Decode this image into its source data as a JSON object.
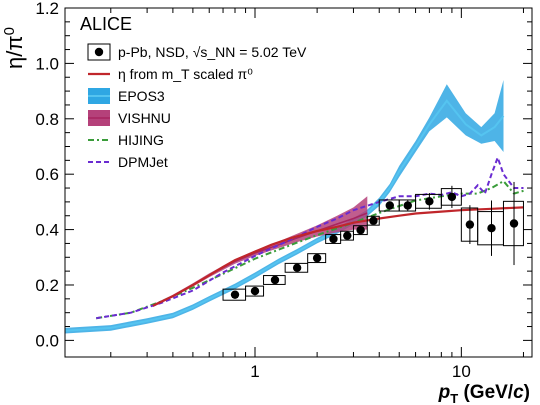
{
  "chart_data": {
    "type": "line",
    "experiment_label": "ALICE",
    "xlabel": "p_T (GeV/c)",
    "ylabel": "η/π⁰",
    "x_scale": "log",
    "xlim": [
      0.12,
      22
    ],
    "ylim": [
      -0.06,
      1.2
    ],
    "x_ticks": [
      {
        "value": 1,
        "label": "1"
      },
      {
        "value": 10,
        "label": "10"
      }
    ],
    "y_ticks": [
      {
        "value": 0.0,
        "label": "0.0"
      },
      {
        "value": 0.2,
        "label": "0.2"
      },
      {
        "value": 0.4,
        "label": "0.4"
      },
      {
        "value": 0.6,
        "label": "0.6"
      },
      {
        "value": 0.8,
        "label": "0.8"
      },
      {
        "value": 1.0,
        "label": "1.0"
      },
      {
        "value": 1.2,
        "label": "1.2"
      }
    ],
    "legend": {
      "placement": "top-left",
      "entries": [
        {
          "key": "data",
          "label": "p-Pb, NSD, √s_NN = 5.02 TeV"
        },
        {
          "key": "scaled",
          "label": "η from m_T scaled π⁰"
        },
        {
          "key": "epos",
          "label": "EPOS3"
        },
        {
          "key": "vishnu",
          "label": "VISHNU"
        },
        {
          "key": "hijing",
          "label": "HIJING"
        },
        {
          "key": "dpmjet",
          "label": "DPMJet"
        }
      ]
    },
    "colors": {
      "data": "#000000",
      "scaled": "#c0262b",
      "epos_line": "#2fa7e3",
      "epos_band": "#2fa7e3",
      "vishnu_line": "#a8245f",
      "vishnu_band": "#b5417a",
      "hijing": "#3a9c3a",
      "dpmjet": "#6a2bd1"
    },
    "data_points": [
      {
        "x": 0.8,
        "y": 0.165,
        "xlo": 0.7,
        "xhi": 0.9,
        "syst": 0.02,
        "stat": 0.015
      },
      {
        "x": 1.0,
        "y": 0.178,
        "xlo": 0.9,
        "xhi": 1.1,
        "syst": 0.018,
        "stat": 0.015
      },
      {
        "x": 1.25,
        "y": 0.218,
        "xlo": 1.1,
        "xhi": 1.4,
        "syst": 0.016,
        "stat": 0.012
      },
      {
        "x": 1.6,
        "y": 0.262,
        "xlo": 1.4,
        "xhi": 1.8,
        "syst": 0.016,
        "stat": 0.012
      },
      {
        "x": 2.0,
        "y": 0.297,
        "xlo": 1.8,
        "xhi": 2.2,
        "syst": 0.016,
        "stat": 0.012
      },
      {
        "x": 2.4,
        "y": 0.366,
        "xlo": 2.2,
        "xhi": 2.6,
        "syst": 0.016,
        "stat": 0.012
      },
      {
        "x": 2.8,
        "y": 0.378,
        "xlo": 2.6,
        "xhi": 3.0,
        "syst": 0.016,
        "stat": 0.012
      },
      {
        "x": 3.25,
        "y": 0.398,
        "xlo": 3.0,
        "xhi": 3.5,
        "syst": 0.016,
        "stat": 0.012
      },
      {
        "x": 3.75,
        "y": 0.432,
        "xlo": 3.5,
        "xhi": 4.0,
        "syst": 0.016,
        "stat": 0.012
      },
      {
        "x": 4.5,
        "y": 0.487,
        "xlo": 4.0,
        "xhi": 5.0,
        "syst": 0.02,
        "stat": 0.015
      },
      {
        "x": 5.5,
        "y": 0.487,
        "xlo": 5.0,
        "xhi": 6.0,
        "syst": 0.02,
        "stat": 0.02
      },
      {
        "x": 7.0,
        "y": 0.502,
        "xlo": 6.0,
        "xhi": 8.0,
        "syst": 0.025,
        "stat": 0.03
      },
      {
        "x": 9.0,
        "y": 0.518,
        "xlo": 8.0,
        "xhi": 10.0,
        "syst": 0.03,
        "stat": 0.04
      },
      {
        "x": 11.0,
        "y": 0.418,
        "xlo": 10.0,
        "xhi": 12.0,
        "syst": 0.06,
        "stat": 0.07
      },
      {
        "x": 14.0,
        "y": 0.405,
        "xlo": 12.0,
        "xhi": 16.0,
        "syst": 0.06,
        "stat": 0.1
      },
      {
        "x": 18.0,
        "y": 0.422,
        "xlo": 16.0,
        "xhi": 20.0,
        "syst": 0.08,
        "stat": 0.15
      }
    ],
    "series": [
      {
        "key": "scaled",
        "style": "solid",
        "points": [
          [
            0.32,
            0.125
          ],
          [
            0.4,
            0.16
          ],
          [
            0.5,
            0.2
          ],
          [
            0.6,
            0.235
          ],
          [
            0.7,
            0.265
          ],
          [
            0.8,
            0.29
          ],
          [
            1.0,
            0.32
          ],
          [
            1.2,
            0.345
          ],
          [
            1.5,
            0.37
          ],
          [
            2.0,
            0.395
          ],
          [
            2.5,
            0.41
          ],
          [
            3.0,
            0.425
          ],
          [
            4.0,
            0.44
          ],
          [
            5.0,
            0.45
          ],
          [
            6.0,
            0.458
          ],
          [
            8.0,
            0.465
          ],
          [
            10.0,
            0.47
          ],
          [
            14.0,
            0.475
          ],
          [
            20.0,
            0.48
          ]
        ]
      },
      {
        "key": "epos",
        "style": "band",
        "points": [
          [
            0.12,
            0.035
          ],
          [
            0.2,
            0.045
          ],
          [
            0.3,
            0.07
          ],
          [
            0.4,
            0.09
          ],
          [
            0.5,
            0.12
          ],
          [
            0.6,
            0.15
          ],
          [
            0.8,
            0.195
          ],
          [
            1.0,
            0.235
          ],
          [
            1.3,
            0.285
          ],
          [
            1.6,
            0.32
          ],
          [
            2.0,
            0.36
          ],
          [
            2.5,
            0.395
          ],
          [
            3.0,
            0.43
          ],
          [
            3.5,
            0.46
          ],
          [
            4.0,
            0.5
          ],
          [
            4.5,
            0.55
          ],
          [
            5.0,
            0.61
          ],
          [
            6.0,
            0.7
          ],
          [
            7.0,
            0.78
          ],
          [
            8.5,
            0.865
          ],
          [
            10.5,
            0.78
          ],
          [
            12.5,
            0.74
          ],
          [
            14.5,
            0.77
          ],
          [
            16.0,
            0.81
          ]
        ],
        "band_halfwidth": [
          0.01,
          0.01,
          0.01,
          0.01,
          0.01,
          0.01,
          0.01,
          0.01,
          0.01,
          0.01,
          0.01,
          0.01,
          0.012,
          0.012,
          0.015,
          0.015,
          0.02,
          0.02,
          0.025,
          0.06,
          0.04,
          0.03,
          0.05,
          0.13
        ]
      },
      {
        "key": "vishnu",
        "style": "band",
        "points": [
          [
            0.32,
            0.125
          ],
          [
            0.4,
            0.16
          ],
          [
            0.5,
            0.2
          ],
          [
            0.6,
            0.235
          ],
          [
            0.8,
            0.285
          ],
          [
            1.0,
            0.315
          ],
          [
            1.3,
            0.345
          ],
          [
            1.6,
            0.37
          ],
          [
            2.0,
            0.395
          ],
          [
            2.5,
            0.42
          ],
          [
            3.0,
            0.44
          ],
          [
            3.5,
            0.46
          ]
        ],
        "band_halfwidth": [
          0.005,
          0.005,
          0.006,
          0.007,
          0.008,
          0.01,
          0.012,
          0.015,
          0.02,
          0.03,
          0.04,
          0.06
        ]
      },
      {
        "key": "hijing",
        "style": "dashdot",
        "points": [
          [
            0.17,
            0.08
          ],
          [
            0.25,
            0.1
          ],
          [
            0.35,
            0.14
          ],
          [
            0.5,
            0.19
          ],
          [
            0.7,
            0.24
          ],
          [
            1.0,
            0.295
          ],
          [
            1.5,
            0.345
          ],
          [
            2.0,
            0.38
          ],
          [
            3.0,
            0.425
          ],
          [
            4.0,
            0.46
          ],
          [
            5.0,
            0.485
          ],
          [
            6.0,
            0.505
          ],
          [
            8.0,
            0.52
          ],
          [
            10.0,
            0.53
          ],
          [
            12.0,
            0.53
          ],
          [
            14.0,
            0.55
          ],
          [
            16.0,
            0.575
          ],
          [
            18.0,
            0.53
          ],
          [
            20.0,
            0.54
          ]
        ]
      },
      {
        "key": "dpmjet",
        "style": "dashed",
        "points": [
          [
            0.17,
            0.08
          ],
          [
            0.25,
            0.1
          ],
          [
            0.35,
            0.135
          ],
          [
            0.5,
            0.18
          ],
          [
            0.7,
            0.245
          ],
          [
            1.0,
            0.305
          ],
          [
            1.5,
            0.365
          ],
          [
            2.0,
            0.41
          ],
          [
            2.5,
            0.44
          ],
          [
            3.0,
            0.47
          ],
          [
            4.0,
            0.5
          ],
          [
            5.0,
            0.52
          ],
          [
            6.0,
            0.52
          ],
          [
            7.0,
            0.53
          ],
          [
            8.0,
            0.525
          ],
          [
            9.0,
            0.535
          ],
          [
            10.0,
            0.52
          ],
          [
            11.0,
            0.53
          ],
          [
            12.0,
            0.56
          ],
          [
            13.0,
            0.53
          ],
          [
            14.0,
            0.6
          ],
          [
            15.0,
            0.66
          ],
          [
            16.0,
            0.6
          ],
          [
            18.0,
            0.55
          ],
          [
            20.0,
            0.55
          ]
        ]
      },
      {
        "key": "vishnu_line_low",
        "style": "hidden",
        "points": []
      },
      {
        "key": "epos_ext",
        "style": "solid",
        "points": [
          [
            0.12,
            0.035
          ],
          [
            0.2,
            0.04
          ]
        ]
      }
    ]
  }
}
